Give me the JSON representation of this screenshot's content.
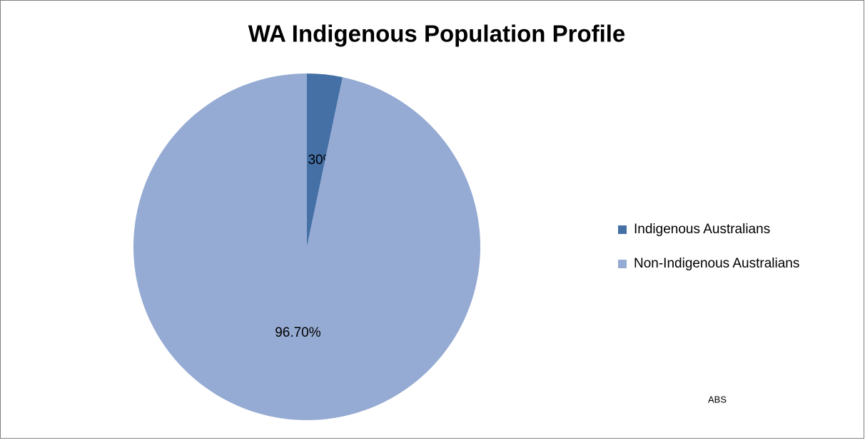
{
  "chart_data": {
    "type": "pie",
    "title": "WA Indigenous Population Profile",
    "categories": [
      "Indigenous Australians",
      "Non-Indigenous Australians"
    ],
    "values": [
      3.3,
      96.7
    ],
    "value_labels": [
      "3.30%",
      "96.70%"
    ],
    "colors": [
      "#4470a6",
      "#95abd3"
    ],
    "legend": "right",
    "annotation": "ABS"
  }
}
